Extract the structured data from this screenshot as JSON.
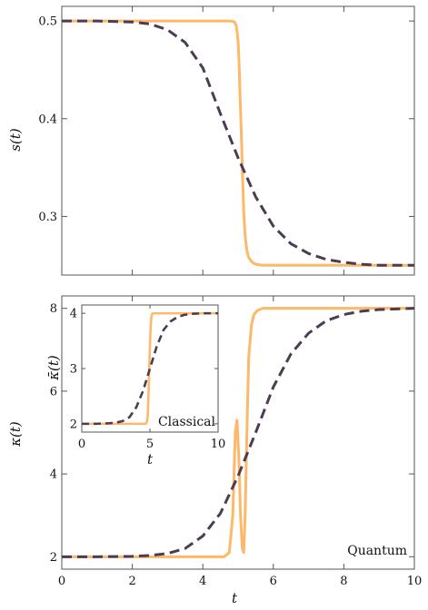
{
  "colors": {
    "solid": "#fdb86a",
    "dashed": "#4b3c52"
  },
  "chart_data": [
    {
      "id": "top",
      "type": "line",
      "xlabel": "",
      "ylabel": "s(t)",
      "xlim": [
        0,
        10
      ],
      "ylim": [
        0.24,
        0.515
      ],
      "xticks": [
        0,
        2,
        4,
        6,
        8,
        10
      ],
      "xticklabels_shown": false,
      "yticks": [
        0.3,
        0.4,
        0.5
      ],
      "yticklabels": [
        "0.3",
        "0.4",
        "0.5"
      ],
      "annotation": "",
      "series": [
        {
          "style": "solid",
          "x": [
            0,
            1,
            2,
            3,
            4,
            4.5,
            4.8,
            4.9,
            4.95,
            5.0,
            5.03,
            5.06,
            5.1,
            5.13,
            5.16,
            5.2,
            5.25,
            5.3,
            5.4,
            5.5,
            5.7,
            6,
            7,
            8,
            9,
            10
          ],
          "y": [
            0.5,
            0.5,
            0.5,
            0.5,
            0.5,
            0.5,
            0.5,
            0.499,
            0.495,
            0.48,
            0.455,
            0.42,
            0.375,
            0.338,
            0.305,
            0.28,
            0.265,
            0.258,
            0.253,
            0.251,
            0.25,
            0.25,
            0.25,
            0.25,
            0.25,
            0.25
          ]
        },
        {
          "style": "dashed",
          "x": [
            0,
            1,
            2,
            2.5,
            3,
            3.5,
            4,
            4.5,
            5,
            5.5,
            6,
            6.5,
            7,
            7.5,
            8,
            8.5,
            9,
            10
          ],
          "y": [
            0.5,
            0.5,
            0.499,
            0.497,
            0.491,
            0.478,
            0.452,
            0.405,
            0.36,
            0.32,
            0.29,
            0.272,
            0.262,
            0.256,
            0.253,
            0.251,
            0.25,
            0.25
          ]
        }
      ]
    },
    {
      "id": "bottom",
      "type": "line",
      "xlabel": "t",
      "ylabel": "κ(t)",
      "xlim": [
        0,
        10
      ],
      "ylim": [
        1.7,
        8.3
      ],
      "xticks": [
        0,
        2,
        4,
        6,
        8,
        10
      ],
      "xticklabels": [
        "0",
        "2",
        "4",
        "6",
        "8",
        "10"
      ],
      "yticks": [
        2,
        4,
        6,
        8
      ],
      "yticklabels": [
        "2",
        "4",
        "6",
        "8"
      ],
      "annotation": "Quantum",
      "series": [
        {
          "style": "solid",
          "x": [
            0,
            1,
            2,
            3,
            4,
            4.6,
            4.75,
            4.85,
            4.92,
            4.97,
            5.02,
            5.07,
            5.12,
            5.16,
            5.2,
            5.25,
            5.3,
            5.38,
            5.45,
            5.55,
            5.7,
            6,
            7,
            8,
            9,
            10
          ],
          "y": [
            2,
            2,
            2,
            2,
            2,
            2,
            2.1,
            3.0,
            5.0,
            5.3,
            4.4,
            3.0,
            2.2,
            2.1,
            3.0,
            5.0,
            6.8,
            7.6,
            7.85,
            7.95,
            8.0,
            8.0,
            8.0,
            8.0,
            8.0,
            8.0
          ]
        },
        {
          "style": "dashed",
          "x": [
            0,
            1,
            2,
            2.5,
            3,
            3.5,
            4,
            4.5,
            5,
            5.5,
            6,
            6.5,
            7,
            7.5,
            8,
            8.5,
            9,
            10
          ],
          "y": [
            2,
            2,
            2.01,
            2.03,
            2.08,
            2.2,
            2.5,
            3.05,
            3.95,
            5.0,
            6.1,
            6.9,
            7.4,
            7.7,
            7.85,
            7.93,
            7.97,
            8.0
          ]
        }
      ]
    },
    {
      "id": "inset",
      "type": "line",
      "xlabel": "t",
      "ylabel": "κ̄(t)",
      "xlim": [
        0,
        10
      ],
      "ylim": [
        1.85,
        4.15
      ],
      "xticks": [
        0,
        5,
        10
      ],
      "xticklabels": [
        "0",
        "5",
        "10"
      ],
      "yticks": [
        2,
        3,
        4
      ],
      "yticklabels": [
        "2",
        "3",
        "4"
      ],
      "annotation": "Classical",
      "series": [
        {
          "style": "solid",
          "x": [
            0,
            1,
            2,
            3,
            4,
            4.7,
            4.8,
            4.85,
            4.9,
            4.95,
            5.0,
            5.05,
            5.1,
            5.15,
            5.2,
            5.3,
            5.5,
            6,
            7,
            8,
            9,
            10
          ],
          "y": [
            2,
            2,
            2,
            2,
            2,
            2,
            2.05,
            2.2,
            2.6,
            3.0,
            3.4,
            3.75,
            3.92,
            3.98,
            4.0,
            4.0,
            4.0,
            4.0,
            4.0,
            4.0,
            4.0,
            4.0
          ]
        },
        {
          "style": "dashed",
          "x": [
            0,
            1,
            2,
            2.5,
            3,
            3.5,
            4,
            4.5,
            5,
            5.5,
            6,
            6.5,
            7,
            7.5,
            8,
            9,
            10
          ],
          "y": [
            2,
            2,
            2.01,
            2.02,
            2.05,
            2.12,
            2.3,
            2.6,
            3.0,
            3.4,
            3.7,
            3.85,
            3.93,
            3.97,
            3.99,
            4.0,
            4.0
          ]
        }
      ]
    }
  ]
}
